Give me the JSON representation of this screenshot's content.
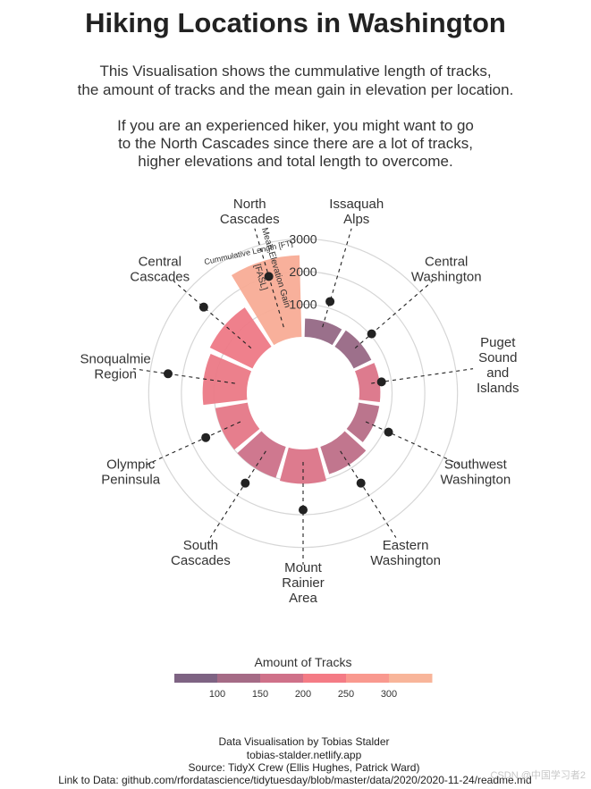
{
  "title": "Hiking Locations in Washington",
  "subtitle_1": [
    "This Visualisation shows the cummulative length of tracks,",
    "the amount of tracks and the mean gain in elevation per location."
  ],
  "subtitle_2": [
    "If you are an experienced hiker, you might want to go",
    "to the North Cascades since there are a lot of tracks,",
    "higher elevations and total length to overcome."
  ],
  "chart_data": {
    "type": "radial-bar",
    "title": "Hiking Locations in Washington",
    "categories": [
      {
        "name": "Issaquah Alps",
        "label_lines": [
          "Issaquah",
          "Alps"
        ],
        "length": 560,
        "tracks": 85,
        "elevation": 1200
      },
      {
        "name": "Central Washington",
        "label_lines": [
          "Central",
          "Washington"
        ],
        "length": 600,
        "tracks": 90,
        "elevation": 1050
      },
      {
        "name": "Puget Sound and Islands",
        "label_lines": [
          "Puget",
          "Sound",
          "and",
          "Islands"
        ],
        "length": 640,
        "tracks": 190,
        "elevation": 700
      },
      {
        "name": "Southwest Washington",
        "label_lines": [
          "Southwest",
          "Washington"
        ],
        "length": 640,
        "tracks": 135,
        "elevation": 1150
      },
      {
        "name": "Eastern Washington",
        "label_lines": [
          "Eastern",
          "Washington"
        ],
        "length": 880,
        "tracks": 145,
        "elevation": 1550
      },
      {
        "name": "Mount Rainier Area",
        "label_lines": [
          "Mount",
          "Rainier",
          "Area"
        ],
        "length": 1050,
        "tracks": 190,
        "elevation": 1850
      },
      {
        "name": "South Cascades",
        "label_lines": [
          "South",
          "Cascades"
        ],
        "length": 1000,
        "tracks": 165,
        "elevation": 1550
      },
      {
        "name": "Olympic Peninsula",
        "label_lines": [
          "Olympic",
          "Peninsula"
        ],
        "length": 1000,
        "tracks": 205,
        "elevation": 1550
      },
      {
        "name": "Snoqualmie Region",
        "label_lines": [
          "Snoqualmie",
          "Region"
        ],
        "length": 1350,
        "tracks": 215,
        "elevation": 2450
      },
      {
        "name": "Central Cascades",
        "label_lines": [
          "Central",
          "Cascades"
        ],
        "length": 1450,
        "tracks": 220,
        "elevation": 2300
      },
      {
        "name": "North Cascades",
        "label_lines": [
          "North",
          "Cascades"
        ],
        "length": 2500,
        "tracks": 330,
        "elevation": 2000
      }
    ],
    "radial_ticks": [
      1000,
      2000,
      3000
    ],
    "rmax": 3200,
    "axis_label_length": "Cummulative Length [FT]",
    "axis_label_elevation_1": "Mean Elevation Gain",
    "axis_label_elevation_2": "[FASL]",
    "legend": {
      "title": "Amount of Tracks",
      "ticks": [
        100,
        150,
        200,
        250,
        300
      ],
      "range": [
        50,
        350
      ],
      "colors": [
        "#7e6383",
        "#a56b86",
        "#cf7189",
        "#f47b85",
        "#f9998f",
        "#f8b59a"
      ]
    }
  },
  "credits": [
    "Data Visualisation by Tobias Stalder",
    "tobias-stalder.netlify.app",
    "Source: TidyX Crew (Ellis Hughes, Patrick Ward)",
    "Link to Data: github.com/rfordatascience/tidytuesday/blob/master/data/2020/2020-11-24/readme.md"
  ],
  "watermark": "CSDN @中国学习者2"
}
